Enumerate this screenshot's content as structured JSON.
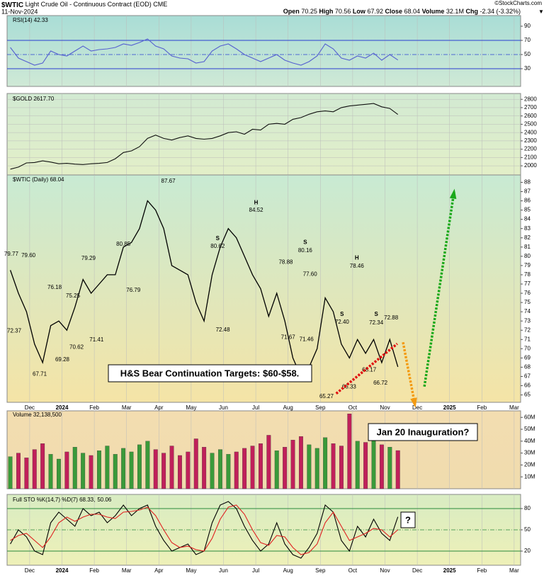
{
  "header": {
    "symbol": "$WTIC",
    "name": "Light Crude Oil - Continuous Contract (EOD) CME",
    "date": "11-Nov-2024",
    "watermark": "©StockCharts.com",
    "quote": [
      {
        "label": "Open",
        "value": "70.25"
      },
      {
        "label": "High",
        "value": "70.56"
      },
      {
        "label": "Low",
        "value": "67.92"
      },
      {
        "label": "Close",
        "value": "68.04"
      },
      {
        "label": "Volume",
        "value": "32.1M"
      },
      {
        "label": "Chg",
        "value": "-2.34 (-3.32%)"
      }
    ]
  },
  "notes": {
    "target": "H&S Bear Continuation Targets: $60-$58.",
    "inauguration": "Jan 20 Inauguration?",
    "question": "?"
  },
  "chart_data": [
    {
      "type": "line",
      "legend": "RSI(14) 42.33",
      "x": [
        -0.6,
        -0.35,
        -0.1,
        0.15,
        0.4,
        0.65,
        0.9,
        1.15,
        1.4,
        1.65,
        1.9,
        2.15,
        2.4,
        2.65,
        2.9,
        3.15,
        3.4,
        3.65,
        3.9,
        4.15,
        4.4,
        4.65,
        4.9,
        5.15,
        5.4,
        5.65,
        5.9,
        6.15,
        6.4,
        6.65,
        6.9,
        7.15,
        7.4,
        7.65,
        7.9,
        8.15,
        8.4,
        8.65,
        8.9,
        9.15,
        9.4,
        9.65,
        9.9,
        10.15,
        10.4,
        10.65,
        10.9,
        11.15,
        11.4
      ],
      "xlim": [
        -0.7,
        15.2
      ],
      "ylim": [
        5,
        105
      ],
      "yticks": [
        30,
        50,
        70,
        90
      ],
      "bands": [
        30,
        70
      ],
      "midline": 50,
      "band_color": "#2a3fd0",
      "series": [
        {
          "name": "RSI(14)",
          "color": "#5560d0",
          "values": [
            60,
            45,
            40,
            35,
            38,
            55,
            50,
            48,
            55,
            62,
            55,
            57,
            58,
            60,
            65,
            63,
            67,
            72,
            62,
            58,
            48,
            45,
            44,
            38,
            40,
            55,
            62,
            65,
            58,
            50,
            45,
            40,
            45,
            50,
            42,
            38,
            35,
            40,
            48,
            65,
            58,
            45,
            42,
            48,
            45,
            52,
            42,
            50,
            42.33
          ]
        }
      ]
    },
    {
      "type": "line",
      "legend": "$GOLD 2617.70",
      "x": [
        -0.6,
        -0.35,
        -0.1,
        0.15,
        0.4,
        0.65,
        0.9,
        1.15,
        1.4,
        1.65,
        1.9,
        2.15,
        2.4,
        2.65,
        2.9,
        3.15,
        3.4,
        3.65,
        3.9,
        4.15,
        4.4,
        4.65,
        4.9,
        5.15,
        5.4,
        5.65,
        5.9,
        6.15,
        6.4,
        6.65,
        6.9,
        7.15,
        7.4,
        7.65,
        7.9,
        8.15,
        8.4,
        8.65,
        8.9,
        9.15,
        9.4,
        9.65,
        9.9,
        10.15,
        10.4,
        10.65,
        10.9,
        11.15,
        11.4
      ],
      "xlim": [
        -0.7,
        15.2
      ],
      "ylim": [
        1890,
        2870
      ],
      "yticks": [
        2000,
        2100,
        2200,
        2300,
        2400,
        2500,
        2600,
        2700,
        2800
      ],
      "grid": true,
      "series": [
        {
          "name": "$GOLD",
          "color": "#111111",
          "values": [
            1960,
            1985,
            2035,
            2040,
            2060,
            2045,
            2025,
            2030,
            2020,
            2015,
            2025,
            2030,
            2040,
            2085,
            2160,
            2180,
            2230,
            2330,
            2370,
            2330,
            2310,
            2340,
            2360,
            2330,
            2320,
            2330,
            2360,
            2400,
            2410,
            2380,
            2440,
            2430,
            2500,
            2510,
            2500,
            2560,
            2580,
            2620,
            2650,
            2660,
            2650,
            2700,
            2720,
            2730,
            2740,
            2750,
            2710,
            2690,
            2617.7
          ]
        }
      ]
    },
    {
      "type": "line",
      "legend": "$WTIC (Daily) 68.04",
      "x": [
        -0.6,
        -0.35,
        -0.1,
        0.15,
        0.4,
        0.65,
        0.9,
        1.15,
        1.4,
        1.65,
        1.9,
        2.15,
        2.4,
        2.65,
        2.9,
        3.15,
        3.4,
        3.65,
        3.9,
        4.15,
        4.4,
        4.65,
        4.9,
        5.15,
        5.4,
        5.65,
        5.9,
        6.15,
        6.4,
        6.65,
        6.9,
        7.15,
        7.4,
        7.65,
        7.9,
        8.15,
        8.4,
        8.65,
        8.9,
        9.15,
        9.4,
        9.65,
        9.9,
        10.15,
        10.4,
        10.65,
        10.9,
        11.15,
        11.4
      ],
      "xlim": [
        -0.7,
        15.2
      ],
      "xticks": [
        {
          "value": 0,
          "label": "Dec"
        },
        {
          "value": 1,
          "label": "2024"
        },
        {
          "value": 2,
          "label": "Feb"
        },
        {
          "value": 3,
          "label": "Mar"
        },
        {
          "value": 4,
          "label": "Apr"
        },
        {
          "value": 5,
          "label": "May"
        },
        {
          "value": 6,
          "label": "Jun"
        },
        {
          "value": 7,
          "label": "Jul"
        },
        {
          "value": 8,
          "label": "Aug"
        },
        {
          "value": 9,
          "label": "Sep"
        },
        {
          "value": 10,
          "label": "Oct"
        },
        {
          "value": 11,
          "label": "Nov"
        },
        {
          "value": 12,
          "label": "Dec"
        },
        {
          "value": 13,
          "label": "2025"
        },
        {
          "value": 14,
          "label": "Feb"
        },
        {
          "value": 15,
          "label": "Mar"
        }
      ],
      "ylim": [
        64.2,
        88.8
      ],
      "yticks": [
        65,
        66,
        67,
        68,
        69,
        70,
        71,
        72,
        73,
        74,
        75,
        76,
        77,
        78,
        79,
        80,
        81,
        82,
        83,
        84,
        85,
        86,
        87,
        88
      ],
      "series": [
        {
          "name": "$WTIC",
          "color": "#000000",
          "values": [
            78.5,
            76,
            74,
            70.5,
            68.5,
            72.5,
            73,
            72,
            74.5,
            77.5,
            76,
            77,
            78,
            78,
            81,
            81.5,
            83,
            86,
            85,
            83,
            79,
            78.5,
            78,
            75,
            73,
            78,
            81,
            83,
            82,
            80,
            78,
            76.5,
            73.5,
            76,
            73,
            69,
            67,
            68,
            70,
            75.5,
            74,
            70.5,
            69,
            71,
            69.5,
            71,
            68.5,
            71,
            68.04
          ]
        }
      ],
      "high_labels": [
        {
          "x": -0.57,
          "value": 79.77,
          "label": "79.77"
        },
        {
          "x": -0.04,
          "value": 79.6,
          "label": "79.60"
        },
        {
          "x": 0.77,
          "value": 76.18,
          "label": "76.18"
        },
        {
          "x": 1.34,
          "value": 75.25,
          "label": "75.25"
        },
        {
          "x": 1.82,
          "value": 79.29,
          "label": "79.29"
        },
        {
          "x": 2.9,
          "value": 80.85,
          "label": "80.85"
        },
        {
          "x": 4.29,
          "value": 87.67,
          "label": "87.67"
        },
        {
          "x": 5.82,
          "value": 80.62,
          "label": "80.62"
        },
        {
          "x": 7.01,
          "value": 84.52,
          "label": "84.52"
        },
        {
          "x": 7.93,
          "value": 78.88,
          "label": "78.88"
        },
        {
          "x": 8.53,
          "value": 80.16,
          "label": "80.16"
        },
        {
          "x": 8.68,
          "value": 77.6,
          "label": "77.60"
        },
        {
          "x": 10.13,
          "value": 78.46,
          "label": "78.46"
        },
        {
          "x": 9.67,
          "value": 72.4,
          "label": "72.40"
        },
        {
          "x": 10.73,
          "value": 72.34,
          "label": "72.34"
        },
        {
          "x": 11.19,
          "value": 72.88,
          "label": "72.88"
        }
      ],
      "low_labels": [
        {
          "x": -0.48,
          "value": 72.37,
          "label": "72.37"
        },
        {
          "x": 0.31,
          "value": 67.71,
          "label": "67.71"
        },
        {
          "x": 1.01,
          "value": 69.28,
          "label": "69.28"
        },
        {
          "x": 1.45,
          "value": 70.62,
          "label": "70.62"
        },
        {
          "x": 2.07,
          "value": 71.41,
          "label": "71.41"
        },
        {
          "x": 3.21,
          "value": 76.79,
          "label": "76.79"
        },
        {
          "x": 5.98,
          "value": 72.48,
          "label": "72.48"
        },
        {
          "x": 8.0,
          "value": 71.67,
          "label": "71.67"
        },
        {
          "x": 8.57,
          "value": 71.46,
          "label": "71.46"
        },
        {
          "x": 9.19,
          "value": 65.27,
          "label": "65.27"
        },
        {
          "x": 9.89,
          "value": 66.33,
          "label": "66.33"
        },
        {
          "x": 10.51,
          "value": 68.17,
          "label": "68.17"
        },
        {
          "x": 10.86,
          "value": 66.72,
          "label": "66.72"
        }
      ],
      "pattern_labels": [
        {
          "text": "S",
          "x": 5.82,
          "y": 81.9
        },
        {
          "text": "H",
          "x": 7.01,
          "y": 85.8
        },
        {
          "text": "S",
          "x": 8.53,
          "y": 81.5
        },
        {
          "text": "H",
          "x": 10.13,
          "y": 79.8
        },
        {
          "text": "S",
          "x": 9.67,
          "y": 73.7
        },
        {
          "text": "S",
          "x": 10.73,
          "y": 73.7
        }
      ],
      "arrows": [
        {
          "color": "#e01010",
          "head": false,
          "x": [
            9.49,
            11.38
          ],
          "y": [
            65.15,
            70.54
          ]
        },
        {
          "color": "#f39a10",
          "head": true,
          "x": [
            11.56,
            11.93
          ],
          "y": [
            70.7,
            63.9
          ]
        },
        {
          "color": "#1aa81a",
          "head": true,
          "x": [
            12.22,
            13.14
          ],
          "y": [
            65.9,
            87.0
          ]
        }
      ]
    },
    {
      "type": "bar",
      "legend": "Volume 32,138,500",
      "x": [
        -0.6,
        -0.35,
        -0.1,
        0.15,
        0.4,
        0.65,
        0.9,
        1.15,
        1.4,
        1.65,
        1.9,
        2.15,
        2.4,
        2.65,
        2.9,
        3.15,
        3.4,
        3.65,
        3.9,
        4.15,
        4.4,
        4.65,
        4.9,
        5.15,
        5.4,
        5.65,
        5.9,
        6.15,
        6.4,
        6.65,
        6.9,
        7.15,
        7.4,
        7.65,
        7.9,
        8.15,
        8.4,
        8.65,
        8.9,
        9.15,
        9.4,
        9.65,
        9.9,
        10.15,
        10.4,
        10.65,
        10.9,
        11.15,
        11.4
      ],
      "xlim": [
        -0.7,
        15.2
      ],
      "ylim": [
        0,
        65500000
      ],
      "yticks": [
        {
          "value": 10000000,
          "label": "10M"
        },
        {
          "value": 20000000,
          "label": "20M"
        },
        {
          "value": 30000000,
          "label": "30M"
        },
        {
          "value": 40000000,
          "label": "40M"
        },
        {
          "value": 50000000,
          "label": "50M"
        },
        {
          "value": 60000000,
          "label": "60M"
        }
      ],
      "up_color": "#3a9a3a",
      "down_color": "#c0205a",
      "series": [
        {
          "name": "Volume",
          "values": [
            27000000,
            30000000,
            26000000,
            33000000,
            38000000,
            29000000,
            25000000,
            31000000,
            35000000,
            30000000,
            28000000,
            32000000,
            36000000,
            29000000,
            34000000,
            31000000,
            37000000,
            40000000,
            33000000,
            30000000,
            36000000,
            28000000,
            31000000,
            42000000,
            35000000,
            30000000,
            33000000,
            29000000,
            31000000,
            34000000,
            36000000,
            38000000,
            45000000,
            32000000,
            35000000,
            41000000,
            44000000,
            37000000,
            34000000,
            43000000,
            38000000,
            36000000,
            63000000,
            40000000,
            39000000,
            42000000,
            37000000,
            35000000,
            32138500
          ]
        }
      ]
    },
    {
      "type": "line",
      "legend": "Full STO %K(14,7) %D(7) 68.33,",
      "legend_d": "50.06",
      "x": [
        -0.6,
        -0.35,
        -0.1,
        0.15,
        0.4,
        0.65,
        0.9,
        1.15,
        1.4,
        1.65,
        1.9,
        2.15,
        2.4,
        2.65,
        2.9,
        3.15,
        3.4,
        3.65,
        3.9,
        4.15,
        4.4,
        4.65,
        4.9,
        5.15,
        5.4,
        5.65,
        5.9,
        6.15,
        6.4,
        6.65,
        6.9,
        7.15,
        7.4,
        7.65,
        7.9,
        8.15,
        8.4,
        8.65,
        8.9,
        9.15,
        9.4,
        9.65,
        9.9,
        10.15,
        10.4,
        10.65,
        10.9,
        11.15,
        11.4
      ],
      "xlim": [
        -0.7,
        15.2
      ],
      "xticks": [
        {
          "value": 0,
          "label": "Dec"
        },
        {
          "value": 1,
          "label": "2024"
        },
        {
          "value": 2,
          "label": "Feb"
        },
        {
          "value": 3,
          "label": "Mar"
        },
        {
          "value": 4,
          "label": "Apr"
        },
        {
          "value": 5,
          "label": "May"
        },
        {
          "value": 6,
          "label": "Jun"
        },
        {
          "value": 7,
          "label": "Jul"
        },
        {
          "value": 8,
          "label": "Aug"
        },
        {
          "value": 9,
          "label": "Sep"
        },
        {
          "value": 10,
          "label": "Oct"
        },
        {
          "value": 11,
          "label": "Nov"
        },
        {
          "value": 12,
          "label": "Dec"
        },
        {
          "value": 13,
          "label": "2025"
        },
        {
          "value": 14,
          "label": "Feb"
        },
        {
          "value": 15,
          "label": "Mar"
        }
      ],
      "ylim": [
        0,
        100
      ],
      "yticks": [
        20,
        50,
        80
      ],
      "bands": [
        20,
        80
      ],
      "midline": 50,
      "band_color": "#2a8a3a",
      "series": [
        {
          "name": "%K",
          "color": "#000000",
          "values": [
            30,
            50,
            40,
            20,
            15,
            60,
            75,
            65,
            55,
            80,
            70,
            75,
            60,
            70,
            85,
            70,
            80,
            85,
            55,
            35,
            20,
            25,
            30,
            15,
            20,
            60,
            85,
            90,
            80,
            55,
            35,
            20,
            30,
            60,
            30,
            15,
            10,
            25,
            45,
            85,
            75,
            35,
            20,
            55,
            40,
            65,
            45,
            35,
            68.33
          ]
        },
        {
          "name": "%D",
          "color": "#e02020",
          "values": [
            35,
            42,
            45,
            35,
            25,
            40,
            60,
            68,
            62,
            68,
            72,
            72,
            68,
            66,
            75,
            76,
            78,
            82,
            70,
            50,
            32,
            25,
            27,
            22,
            20,
            38,
            65,
            82,
            85,
            72,
            50,
            32,
            28,
            42,
            40,
            25,
            15,
            18,
            30,
            60,
            75,
            55,
            35,
            40,
            45,
            52,
            50,
            40,
            50.06
          ]
        }
      ]
    }
  ]
}
